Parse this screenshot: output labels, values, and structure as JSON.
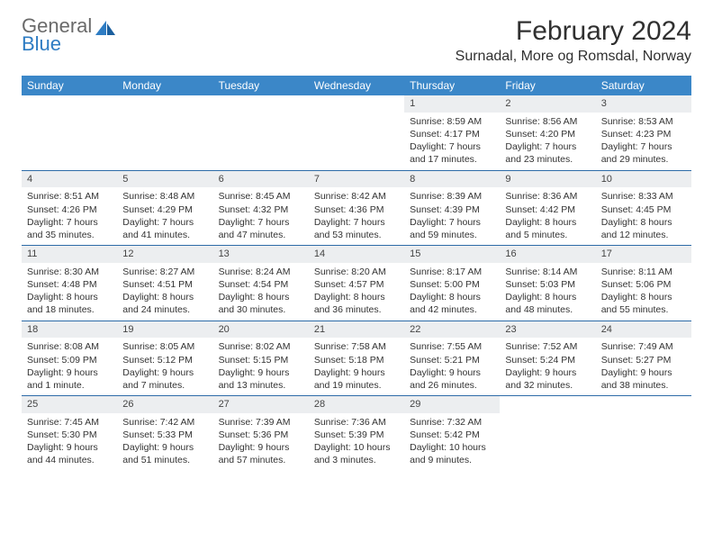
{
  "brand": {
    "line1": "General",
    "line2": "Blue"
  },
  "title": "February 2024",
  "location": "Surnadal, More og Romsdal, Norway",
  "colors": {
    "header_bg": "#3b87c8",
    "row_border": "#2e6ca8",
    "daynum_bg": "#eceef0",
    "logo_gray": "#6a6a6a",
    "logo_blue": "#2e7cc3"
  },
  "day_names": [
    "Sunday",
    "Monday",
    "Tuesday",
    "Wednesday",
    "Thursday",
    "Friday",
    "Saturday"
  ],
  "weeks": [
    [
      {
        "empty": true
      },
      {
        "empty": true
      },
      {
        "empty": true
      },
      {
        "empty": true
      },
      {
        "num": "1",
        "sunrise": "8:59 AM",
        "sunset": "4:17 PM",
        "daylight": "7 hours and 17 minutes."
      },
      {
        "num": "2",
        "sunrise": "8:56 AM",
        "sunset": "4:20 PM",
        "daylight": "7 hours and 23 minutes."
      },
      {
        "num": "3",
        "sunrise": "8:53 AM",
        "sunset": "4:23 PM",
        "daylight": "7 hours and 29 minutes."
      }
    ],
    [
      {
        "num": "4",
        "sunrise": "8:51 AM",
        "sunset": "4:26 PM",
        "daylight": "7 hours and 35 minutes."
      },
      {
        "num": "5",
        "sunrise": "8:48 AM",
        "sunset": "4:29 PM",
        "daylight": "7 hours and 41 minutes."
      },
      {
        "num": "6",
        "sunrise": "8:45 AM",
        "sunset": "4:32 PM",
        "daylight": "7 hours and 47 minutes."
      },
      {
        "num": "7",
        "sunrise": "8:42 AM",
        "sunset": "4:36 PM",
        "daylight": "7 hours and 53 minutes."
      },
      {
        "num": "8",
        "sunrise": "8:39 AM",
        "sunset": "4:39 PM",
        "daylight": "7 hours and 59 minutes."
      },
      {
        "num": "9",
        "sunrise": "8:36 AM",
        "sunset": "4:42 PM",
        "daylight": "8 hours and 5 minutes."
      },
      {
        "num": "10",
        "sunrise": "8:33 AM",
        "sunset": "4:45 PM",
        "daylight": "8 hours and 12 minutes."
      }
    ],
    [
      {
        "num": "11",
        "sunrise": "8:30 AM",
        "sunset": "4:48 PM",
        "daylight": "8 hours and 18 minutes."
      },
      {
        "num": "12",
        "sunrise": "8:27 AM",
        "sunset": "4:51 PM",
        "daylight": "8 hours and 24 minutes."
      },
      {
        "num": "13",
        "sunrise": "8:24 AM",
        "sunset": "4:54 PM",
        "daylight": "8 hours and 30 minutes."
      },
      {
        "num": "14",
        "sunrise": "8:20 AM",
        "sunset": "4:57 PM",
        "daylight": "8 hours and 36 minutes."
      },
      {
        "num": "15",
        "sunrise": "8:17 AM",
        "sunset": "5:00 PM",
        "daylight": "8 hours and 42 minutes."
      },
      {
        "num": "16",
        "sunrise": "8:14 AM",
        "sunset": "5:03 PM",
        "daylight": "8 hours and 48 minutes."
      },
      {
        "num": "17",
        "sunrise": "8:11 AM",
        "sunset": "5:06 PM",
        "daylight": "8 hours and 55 minutes."
      }
    ],
    [
      {
        "num": "18",
        "sunrise": "8:08 AM",
        "sunset": "5:09 PM",
        "daylight": "9 hours and 1 minute."
      },
      {
        "num": "19",
        "sunrise": "8:05 AM",
        "sunset": "5:12 PM",
        "daylight": "9 hours and 7 minutes."
      },
      {
        "num": "20",
        "sunrise": "8:02 AM",
        "sunset": "5:15 PM",
        "daylight": "9 hours and 13 minutes."
      },
      {
        "num": "21",
        "sunrise": "7:58 AM",
        "sunset": "5:18 PM",
        "daylight": "9 hours and 19 minutes."
      },
      {
        "num": "22",
        "sunrise": "7:55 AM",
        "sunset": "5:21 PM",
        "daylight": "9 hours and 26 minutes."
      },
      {
        "num": "23",
        "sunrise": "7:52 AM",
        "sunset": "5:24 PM",
        "daylight": "9 hours and 32 minutes."
      },
      {
        "num": "24",
        "sunrise": "7:49 AM",
        "sunset": "5:27 PM",
        "daylight": "9 hours and 38 minutes."
      }
    ],
    [
      {
        "num": "25",
        "sunrise": "7:45 AM",
        "sunset": "5:30 PM",
        "daylight": "9 hours and 44 minutes."
      },
      {
        "num": "26",
        "sunrise": "7:42 AM",
        "sunset": "5:33 PM",
        "daylight": "9 hours and 51 minutes."
      },
      {
        "num": "27",
        "sunrise": "7:39 AM",
        "sunset": "5:36 PM",
        "daylight": "9 hours and 57 minutes."
      },
      {
        "num": "28",
        "sunrise": "7:36 AM",
        "sunset": "5:39 PM",
        "daylight": "10 hours and 3 minutes."
      },
      {
        "num": "29",
        "sunrise": "7:32 AM",
        "sunset": "5:42 PM",
        "daylight": "10 hours and 9 minutes."
      },
      {
        "empty": true
      },
      {
        "empty": true
      }
    ]
  ],
  "labels": {
    "sunrise": "Sunrise:",
    "sunset": "Sunset:",
    "daylight": "Daylight:"
  }
}
